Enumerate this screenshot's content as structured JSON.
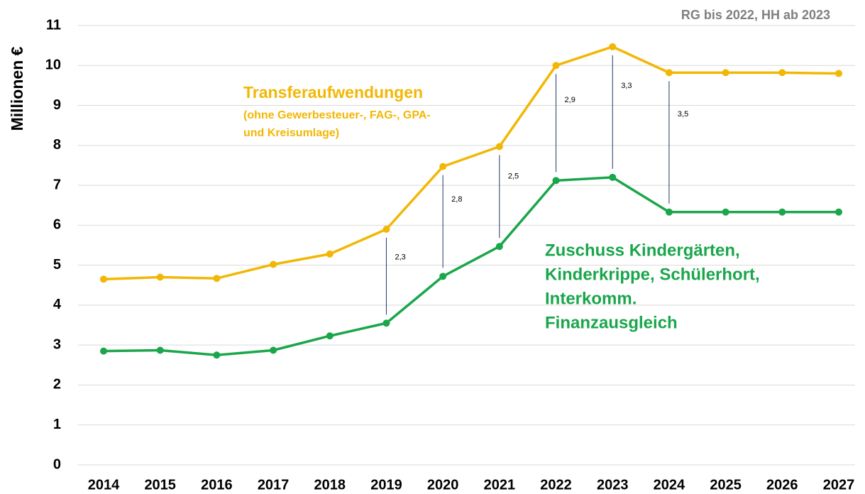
{
  "chart_data": {
    "type": "line",
    "ylabel": "Millionen €",
    "note": "RG bis 2022, HH ab 2023",
    "categories": [
      "2014",
      "2015",
      "2016",
      "2017",
      "2018",
      "2019",
      "2020",
      "2021",
      "2022",
      "2023",
      "2024",
      "2025",
      "2026",
      "2027"
    ],
    "ylim": [
      0,
      11
    ],
    "yticks": [
      0,
      1,
      2,
      3,
      4,
      5,
      6,
      7,
      8,
      9,
      10,
      11
    ],
    "grid": true,
    "series": [
      {
        "label_lines": [
          "Transferaufwendungen"
        ],
        "note_lines": [
          "(ohne Gewerbesteuer-, FAG-, GPA-",
          "und Kreisumlage)"
        ],
        "color": "#f2b705",
        "values": [
          4.65,
          4.7,
          4.67,
          5.02,
          5.28,
          5.9,
          7.47,
          7.97,
          10.0,
          10.47,
          9.82,
          9.82,
          9.82,
          9.8
        ]
      },
      {
        "label_lines": [
          "Zuschuss Kindergärten,",
          "Kinderkrippe, Schülerhort,",
          "Interkomm.",
          "Finanzausgleich"
        ],
        "color": "#1aa64b",
        "values": [
          2.85,
          2.87,
          2.75,
          2.87,
          3.23,
          3.55,
          4.72,
          5.47,
          7.12,
          7.2,
          6.33,
          6.33,
          6.33,
          6.33
        ]
      }
    ],
    "differences": {
      "categories": [
        "2019",
        "2020",
        "2021",
        "2022",
        "2023",
        "2024"
      ],
      "values": [
        2.3,
        2.8,
        2.5,
        2.9,
        3.3,
        3.5
      ],
      "value_labels": [
        "2,3",
        "2,8",
        "2,5",
        "2,9",
        "3,3",
        "3,5"
      ],
      "color": "#1f3864"
    }
  }
}
